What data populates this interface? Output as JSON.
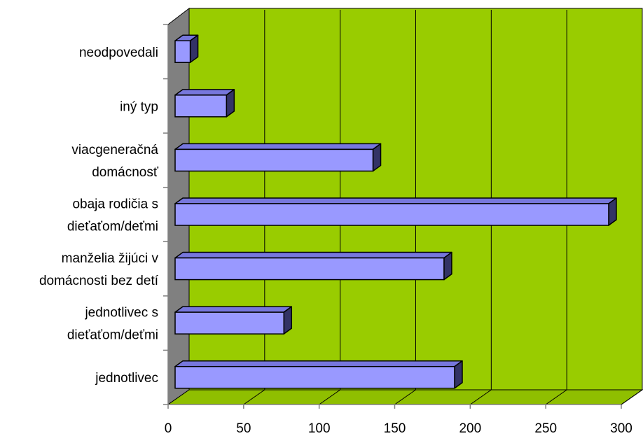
{
  "chart_data": {
    "type": "bar",
    "orientation": "horizontal",
    "style": "3d",
    "title": "",
    "xlabel": "",
    "ylabel": "",
    "categories": [
      [
        "jednotlivec"
      ],
      [
        "jednotlivec s",
        "dieťaťom/deťmi"
      ],
      [
        "manželia žijúci v",
        "domácnosti bez detí"
      ],
      [
        "obaja rodičia s",
        "dieťaťom/deťmi"
      ],
      [
        "viacgeneračná",
        "domácnosť"
      ],
      [
        "iný typ"
      ],
      [
        "neodpovedali"
      ]
    ],
    "values": [
      185,
      72,
      178,
      287,
      131,
      34,
      10
    ],
    "xlim": [
      0,
      300
    ],
    "ticks": [
      0,
      50,
      100,
      150,
      200,
      250,
      300
    ],
    "grid": "vertical",
    "legend": "none",
    "colors": {
      "plot_back": "#99cc00",
      "plot_floor": "#8fbf00",
      "plot_side_wall": "#808080",
      "bar_front": "#9999ff",
      "bar_top": "#7777dd",
      "bar_side": "#333366",
      "gridline": "#000000",
      "axis": "#808080"
    }
  }
}
